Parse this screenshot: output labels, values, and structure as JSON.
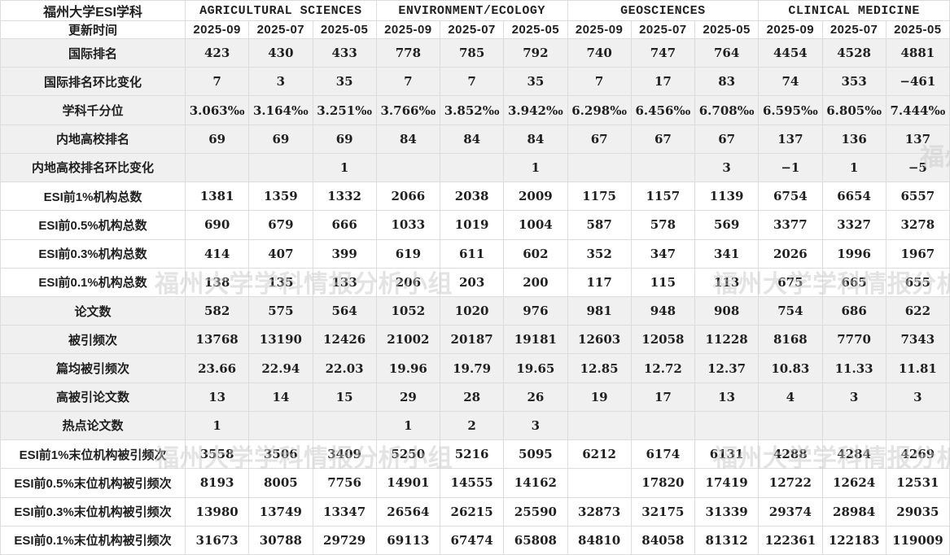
{
  "colors": {
    "text_black": "#1f1f1f",
    "highlight_red": "#bf2c2c",
    "band_gray": "#f0f0f0",
    "border_gray": "#dcdcdc",
    "watermark_gray": "#c9c9c9"
  },
  "watermark": {
    "text": "福州大学学科情报分析小组"
  },
  "chart_data": {
    "type": "table",
    "title": "福州大学ESI学科",
    "date_row_label": "更新时间",
    "column_groups": [
      "AGRICULTURAL SCIENCES",
      "ENVIRONMENT/ECOLOGY",
      "GEOSCIENCES",
      "CLINICAL MEDICINE"
    ],
    "dates_per_group": [
      "2025-09",
      "2025-07",
      "2025-05"
    ],
    "highlight_rule": "first date column (2025-09) of each subject group is shown in red",
    "rows": [
      {
        "label": "国际排名",
        "values": [
          "423",
          "430",
          "433",
          "778",
          "785",
          "792",
          "740",
          "747",
          "764",
          "4454",
          "4528",
          "4881"
        ]
      },
      {
        "label": "国际排名环比变化",
        "values": [
          "7",
          "3",
          "35",
          "7",
          "7",
          "35",
          "7",
          "17",
          "83",
          "74",
          "353",
          "−461"
        ]
      },
      {
        "label": "学科千分位",
        "values": [
          "3.063‰",
          "3.164‰",
          "3.251‰",
          "3.766‰",
          "3.852‰",
          "3.942‰",
          "6.298‰",
          "6.456‰",
          "6.708‰",
          "6.595‰",
          "6.805‰",
          "7.444‰"
        ]
      },
      {
        "label": "内地高校排名",
        "values": [
          "69",
          "69",
          "69",
          "84",
          "84",
          "84",
          "67",
          "67",
          "67",
          "137",
          "136",
          "137"
        ]
      },
      {
        "label": "内地高校排名环比变化",
        "values": [
          "",
          "",
          "1",
          "",
          "",
          "1",
          "",
          "",
          "3",
          "−1",
          "1",
          "−5"
        ]
      },
      {
        "label": "ESI前1%机构总数",
        "values": [
          "1381",
          "1359",
          "1332",
          "2066",
          "2038",
          "2009",
          "1175",
          "1157",
          "1139",
          "6754",
          "6654",
          "6557"
        ]
      },
      {
        "label": "ESI前0.5%机构总数",
        "values": [
          "690",
          "679",
          "666",
          "1033",
          "1019",
          "1004",
          "587",
          "578",
          "569",
          "3377",
          "3327",
          "3278"
        ]
      },
      {
        "label": "ESI前0.3%机构总数",
        "values": [
          "414",
          "407",
          "399",
          "619",
          "611",
          "602",
          "352",
          "347",
          "341",
          "2026",
          "1996",
          "1967"
        ]
      },
      {
        "label": "ESI前0.1%机构总数",
        "values": [
          "138",
          "135",
          "133",
          "206",
          "203",
          "200",
          "117",
          "115",
          "113",
          "675",
          "665",
          "655"
        ]
      },
      {
        "label": "论文数",
        "values": [
          "582",
          "575",
          "564",
          "1052",
          "1020",
          "976",
          "981",
          "948",
          "908",
          "754",
          "686",
          "622"
        ]
      },
      {
        "label": "被引频次",
        "values": [
          "13768",
          "13190",
          "12426",
          "21002",
          "20187",
          "19181",
          "12603",
          "12058",
          "11228",
          "8168",
          "7770",
          "7343"
        ]
      },
      {
        "label": "篇均被引频次",
        "values": [
          "23.66",
          "22.94",
          "22.03",
          "19.96",
          "19.79",
          "19.65",
          "12.85",
          "12.72",
          "12.37",
          "10.83",
          "11.33",
          "11.81"
        ]
      },
      {
        "label": "高被引论文数",
        "values": [
          "13",
          "14",
          "15",
          "29",
          "28",
          "26",
          "19",
          "17",
          "13",
          "4",
          "3",
          "3"
        ]
      },
      {
        "label": "热点论文数",
        "values": [
          "1",
          "",
          "",
          "1",
          "2",
          "3",
          "",
          "",
          "",
          "",
          "",
          ""
        ]
      },
      {
        "label": "ESI前1%末位机构被引频次",
        "values": [
          "3558",
          "3506",
          "3409",
          "5250",
          "5216",
          "5095",
          "6212",
          "6174",
          "6131",
          "4288",
          "4284",
          "4269"
        ]
      },
      {
        "label": "ESI前0.5%末位机构被引频次",
        "values": [
          "8193",
          "8005",
          "7756",
          "14901",
          "14555",
          "14162",
          "",
          "17820",
          "17419",
          "12722",
          "12624",
          "12531"
        ]
      },
      {
        "label": "ESI前0.3%末位机构被引频次",
        "values": [
          "13980",
          "13749",
          "13347",
          "26564",
          "26215",
          "25590",
          "32873",
          "32175",
          "31339",
          "29374",
          "28984",
          "29035"
        ]
      },
      {
        "label": "ESI前0.1%末位机构被引频次",
        "values": [
          "31673",
          "30788",
          "29729",
          "69113",
          "67474",
          "65808",
          "84810",
          "84058",
          "81312",
          "122361",
          "122183",
          "119009"
        ]
      }
    ]
  }
}
